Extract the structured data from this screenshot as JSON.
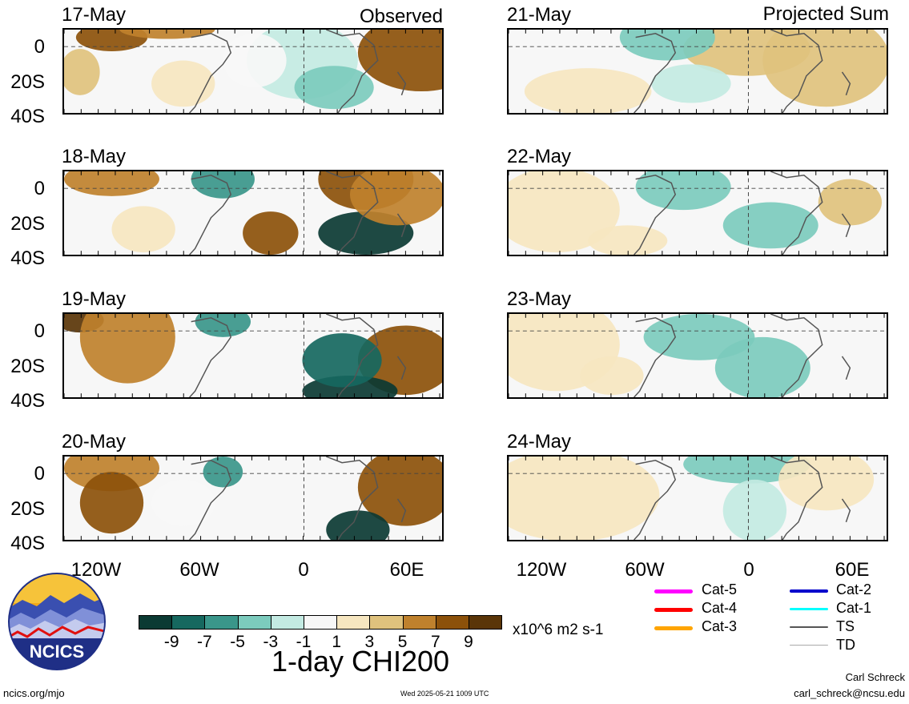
{
  "headers": {
    "observed": "Observed",
    "projected": "Projected Sum"
  },
  "panels": [
    {
      "date": "17-May",
      "group": "observed"
    },
    {
      "date": "18-May",
      "group": "observed"
    },
    {
      "date": "19-May",
      "group": "observed"
    },
    {
      "date": "20-May",
      "group": "observed"
    },
    {
      "date": "21-May",
      "group": "projected"
    },
    {
      "date": "22-May",
      "group": "projected"
    },
    {
      "date": "23-May",
      "group": "projected"
    },
    {
      "date": "24-May",
      "group": "projected"
    }
  ],
  "lat_labels": [
    "0",
    "20S",
    "40S"
  ],
  "lon_labels": [
    "120W",
    "60W",
    "0",
    "60E"
  ],
  "colorbar": {
    "levels": [
      "-9",
      "-7",
      "-5",
      "-3",
      "-1",
      "1",
      "3",
      "5",
      "7",
      "9"
    ],
    "colors": [
      "#0b3a33",
      "#16685f",
      "#3a968a",
      "#7ccbbd",
      "#c3eae2",
      "#f7f7f7",
      "#f6e6c0",
      "#dfc27d",
      "#bf812d",
      "#8c510a",
      "#5a3508"
    ],
    "units": "x10^6 m2 s-1",
    "title": "1-day CHI200"
  },
  "legend": [
    {
      "label": "Cat-5",
      "color": "#ff00ff"
    },
    {
      "label": "Cat-4",
      "color": "#ff0000"
    },
    {
      "label": "Cat-3",
      "color": "#ffa500"
    },
    {
      "label": "Cat-2",
      "color": "#0000cc"
    },
    {
      "label": "Cat-1",
      "color": "#00ffff"
    },
    {
      "label": "TS",
      "color": "#555555"
    },
    {
      "label": "TD",
      "color": "#aaaaaa"
    }
  ],
  "logo_text": "NCICS",
  "footer": {
    "url": "ncics.org/mjo",
    "timestamp": "Wed 2025-05-21 1009 UTC",
    "author": "Carl Schreck",
    "email": "carl_schreck@ncsu.edu"
  }
}
